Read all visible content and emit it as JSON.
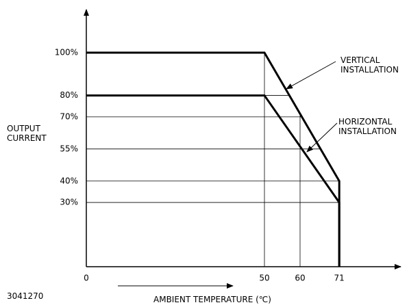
{
  "chart_data": {
    "type": "line",
    "x_label": "AMBIENT TEMPERATURE (℃)",
    "y_label": "OUTPUT CURRENT",
    "figure_id": "3041270",
    "xlim": [
      0,
      85
    ],
    "ylim": [
      0,
      115
    ],
    "xticks": [
      0,
      50,
      60,
      71
    ],
    "yticks": [
      {
        "value": 30,
        "label": "30%"
      },
      {
        "value": 40,
        "label": "40%"
      },
      {
        "value": 55,
        "label": "55%"
      },
      {
        "value": 70,
        "label": "70%"
      },
      {
        "value": 80,
        "label": "80%"
      },
      {
        "value": 100,
        "label": "100%"
      }
    ],
    "series": [
      {
        "name": "VERTICAL INSTALLATION",
        "color": "#000000",
        "x": [
          0,
          50,
          71,
          71
        ],
        "values": [
          100,
          100,
          40,
          0
        ]
      },
      {
        "name": "HORIZONTAL INSTALLATION",
        "color": "#000000",
        "x": [
          0,
          50,
          71,
          71
        ],
        "values": [
          80,
          80,
          30,
          0
        ]
      }
    ]
  }
}
